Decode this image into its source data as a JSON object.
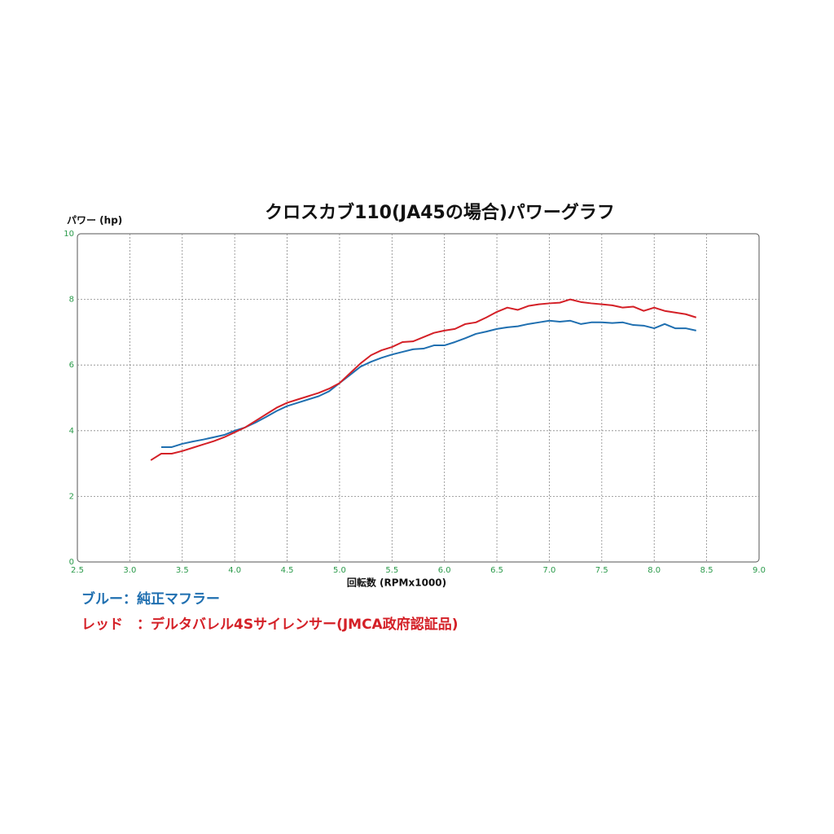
{
  "chart_data": {
    "type": "line",
    "title": "クロスカブ110(JA45の場合)パワーグラフ",
    "y_label": "パワー (hp)",
    "x_label": "回転数 (RPMx1000)",
    "x": [
      3.2,
      3.3,
      3.4,
      3.5,
      3.6,
      3.7,
      3.8,
      3.9,
      4.0,
      4.1,
      4.2,
      4.3,
      4.4,
      4.5,
      4.6,
      4.7,
      4.8,
      4.9,
      5.0,
      5.1,
      5.2,
      5.3,
      5.4,
      5.5,
      5.6,
      5.7,
      5.8,
      5.9,
      6.0,
      6.1,
      6.2,
      6.3,
      6.4,
      6.5,
      6.6,
      6.7,
      6.8,
      6.9,
      7.0,
      7.1,
      7.2,
      7.3,
      7.4,
      7.5,
      7.6,
      7.7,
      7.8,
      7.9,
      8.0,
      8.1,
      8.2,
      8.3,
      8.4
    ],
    "series": [
      {
        "name": "ブルー：純正マフラー",
        "color": "#1f6fb0",
        "values": [
          null,
          3.5,
          3.5,
          3.6,
          3.67,
          3.73,
          3.8,
          3.87,
          4.0,
          4.1,
          4.25,
          4.42,
          4.6,
          4.75,
          4.85,
          4.95,
          5.05,
          5.2,
          5.45,
          5.7,
          5.95,
          6.1,
          6.22,
          6.32,
          6.4,
          6.48,
          6.5,
          6.6,
          6.6,
          6.7,
          6.82,
          6.95,
          7.02,
          7.1,
          7.15,
          7.18,
          7.25,
          7.3,
          7.35,
          7.32,
          7.35,
          7.25,
          7.3,
          7.3,
          7.28,
          7.3,
          7.22,
          7.2,
          7.12,
          7.25,
          7.12,
          7.12,
          7.05
        ]
      },
      {
        "name": "レッド　：デルタバレル4Sサイレンサー(JMCA政府認証品)",
        "color": "#d42027",
        "values": [
          3.1,
          3.3,
          3.3,
          3.38,
          3.48,
          3.58,
          3.68,
          3.8,
          3.95,
          4.1,
          4.3,
          4.5,
          4.7,
          4.85,
          4.95,
          5.05,
          5.15,
          5.28,
          5.45,
          5.75,
          6.05,
          6.3,
          6.45,
          6.55,
          6.7,
          6.72,
          6.85,
          6.98,
          7.05,
          7.1,
          7.25,
          7.3,
          7.45,
          7.62,
          7.75,
          7.68,
          7.8,
          7.85,
          7.88,
          7.9,
          8.0,
          7.92,
          7.88,
          7.85,
          7.82,
          7.75,
          7.78,
          7.65,
          7.75,
          7.65,
          7.6,
          7.55,
          7.45
        ]
      }
    ],
    "xlim": [
      2.5,
      9.0
    ],
    "xticks": [
      2.5,
      {
        "value": 3,
        "label": "3.0"
      },
      3.5,
      {
        "value": 4,
        "label": "4.0"
      },
      4.5,
      {
        "value": 5,
        "label": "5.0"
      },
      5.5,
      {
        "value": 6,
        "label": "6.0"
      },
      6.5,
      {
        "value": 7,
        "label": "7.0"
      },
      7.5,
      {
        "value": 8,
        "label": "8.0"
      },
      8.5,
      {
        "value": 9,
        "label": "9.0"
      }
    ],
    "ylim": [
      0,
      10
    ],
    "yticks": [
      0,
      2,
      4,
      6,
      8,
      10
    ],
    "grid": true,
    "tick_color": "#2a9a4a"
  }
}
